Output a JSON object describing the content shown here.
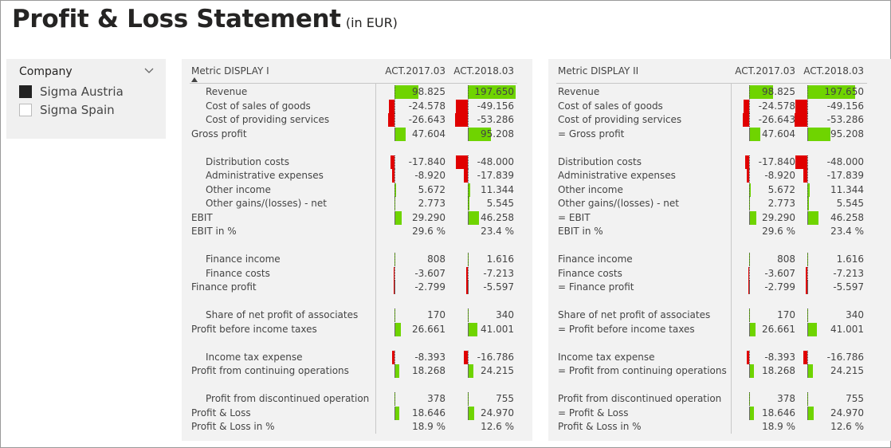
{
  "page": {
    "title": "Profit & Loss Statement",
    "subtitle": "(in EUR)"
  },
  "slicer": {
    "header": "Company",
    "options": [
      {
        "label": "Sigma Austria",
        "selected": true
      },
      {
        "label": "Sigma Spain",
        "selected": false
      }
    ]
  },
  "colors": {
    "positive": "#6fd400",
    "negative": "#e00000",
    "panel": "#f2f2f2"
  },
  "tables": [
    {
      "metric_header": "Metric DISPLAY I",
      "col1_header": "ACT.2017.03",
      "col2_header": "ACT.2018.03"
    },
    {
      "metric_header": "Metric DISPLAY II",
      "col1_header": "ACT.2017.03",
      "col2_header": "ACT.2018.03"
    }
  ],
  "rows": [
    {
      "l1": "Revenue",
      "l2": "Revenue",
      "indent": true,
      "v1": "98.825",
      "v2": "197.650",
      "n1": 98825,
      "n2": 197650,
      "bar": true,
      "gap": 0
    },
    {
      "l1": "Cost of sales of goods",
      "l2": "Cost of sales of goods",
      "indent": true,
      "v1": "-24.578",
      "v2": "-49.156",
      "n1": -24578,
      "n2": -49156,
      "bar": true,
      "gap": 0
    },
    {
      "l1": "Cost of providing services",
      "l2": "Cost of providing services",
      "indent": true,
      "v1": "-26.643",
      "v2": "-53.286",
      "n1": -26643,
      "n2": -53286,
      "bar": true,
      "gap": 0
    },
    {
      "l1": "Gross profit",
      "l2": "= Gross profit",
      "indent": false,
      "v1": "47.604",
      "v2": "95.208",
      "n1": 47604,
      "n2": 95208,
      "bar": true,
      "gap": 0
    },
    {
      "l1": "Distribution costs",
      "l2": "Distribution costs",
      "indent": true,
      "v1": "-17.840",
      "v2": "-48.000",
      "n1": -17840,
      "n2": -48000,
      "bar": true,
      "gap": 1
    },
    {
      "l1": "Administrative expenses",
      "l2": "Administrative expenses",
      "indent": true,
      "v1": "-8.920",
      "v2": "-17.839",
      "n1": -8920,
      "n2": -17839,
      "bar": true,
      "gap": 0
    },
    {
      "l1": "Other income",
      "l2": "Other income",
      "indent": true,
      "v1": "5.672",
      "v2": "11.344",
      "n1": 5672,
      "n2": 11344,
      "bar": true,
      "gap": 0
    },
    {
      "l1": "Other gains/(losses) - net",
      "l2": "Other gains/(losses) - net",
      "indent": true,
      "v1": "2.773",
      "v2": "5.545",
      "n1": 2773,
      "n2": 5545,
      "bar": true,
      "gap": 0
    },
    {
      "l1": "EBIT",
      "l2": "= EBIT",
      "indent": false,
      "v1": "29.290",
      "v2": "46.258",
      "n1": 29290,
      "n2": 46258,
      "bar": true,
      "gap": 0
    },
    {
      "l1": "EBIT in %",
      "l2": "EBIT in %",
      "indent": false,
      "v1": "29.6 %",
      "v2": "23.4 %",
      "n1": 0,
      "n2": 0,
      "bar": false,
      "gap": 0
    },
    {
      "l1": "Finance income",
      "l2": "Finance income",
      "indent": true,
      "v1": "808",
      "v2": "1.616",
      "n1": 808,
      "n2": 1616,
      "bar": true,
      "gap": 1
    },
    {
      "l1": "Finance costs",
      "l2": "Finance costs",
      "indent": true,
      "v1": "-3.607",
      "v2": "-7.213",
      "n1": -3607,
      "n2": -7213,
      "bar": true,
      "gap": 0
    },
    {
      "l1": "Finance profit",
      "l2": "= Finance profit",
      "indent": false,
      "v1": "-2.799",
      "v2": "-5.597",
      "n1": -2799,
      "n2": -5597,
      "bar": true,
      "gap": 0
    },
    {
      "l1": "Share of net profit of associates",
      "l2": "Share of net profit of associates",
      "indent": true,
      "v1": "170",
      "v2": "340",
      "n1": 170,
      "n2": 340,
      "bar": true,
      "gap": 1
    },
    {
      "l1": "Profit before income taxes",
      "l2": "= Profit before income taxes",
      "indent": false,
      "v1": "26.661",
      "v2": "41.001",
      "n1": 26661,
      "n2": 41001,
      "bar": true,
      "gap": 0
    },
    {
      "l1": "Income tax expense",
      "l2": "Income tax expense",
      "indent": true,
      "v1": "-8.393",
      "v2": "-16.786",
      "n1": -8393,
      "n2": -16786,
      "bar": true,
      "gap": 1
    },
    {
      "l1": "Profit from continuing operations",
      "l2": "= Profit from continuing operations",
      "indent": false,
      "v1": "18.268",
      "v2": "24.215",
      "n1": 18268,
      "n2": 24215,
      "bar": true,
      "gap": 0
    },
    {
      "l1": "Profit from discontinued operation",
      "l2": "Profit from discontinued operation",
      "indent": true,
      "v1": "378",
      "v2": "755",
      "n1": 378,
      "n2": 755,
      "bar": true,
      "gap": 1
    },
    {
      "l1": "Profit & Loss",
      "l2": "= Profit & Loss",
      "indent": false,
      "v1": "18.646",
      "v2": "24.970",
      "n1": 18646,
      "n2": 24970,
      "bar": true,
      "gap": 0
    },
    {
      "l1": "Profit & Loss in %",
      "l2": "Profit & Loss in %",
      "indent": false,
      "v1": "18.9 %",
      "v2": "12.6 %",
      "n1": 0,
      "n2": 0,
      "bar": false,
      "gap": 0
    }
  ]
}
